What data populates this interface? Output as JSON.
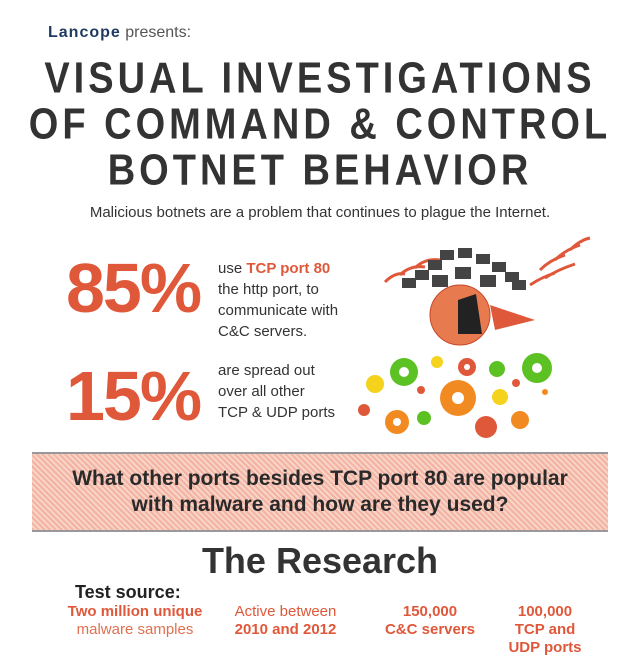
{
  "header": {
    "brand": "Lancope",
    "presents": "presents:"
  },
  "title": {
    "lines": [
      "VISUAL INVESTIGATIONS",
      "OF COMMAND & CONTROL",
      "BOTNET BEHAVIOR"
    ]
  },
  "subtitle": "Malicious botnets are a problem that continues to plague the Internet.",
  "stats": [
    {
      "value": "85%",
      "highlight": "TCP port 80",
      "lines": [
        "use",
        "the http port, to",
        "communicate with",
        "C&C servers."
      ]
    },
    {
      "value": "15%",
      "lines": [
        "are spread out",
        "over all other",
        "TCP & UDP ports"
      ]
    }
  ],
  "banner": {
    "lines": [
      "What other ports besides TCP port 80 are popular",
      "with malware and how are they used?"
    ]
  },
  "research": {
    "heading": "The Research",
    "test_source": "Test source:",
    "columns": [
      {
        "strong": "Two million unique",
        "normal": "malware samples"
      },
      {
        "normal": "Active between",
        "strong": "2010 and 2012"
      },
      {
        "strong": "150,000",
        "strong2": "C&C servers"
      },
      {
        "strong": "100,000",
        "strong2": "TCP and",
        "strong3": "UDP ports"
      }
    ]
  },
  "colors": {
    "accent": "#e0583a",
    "text": "#333333",
    "green": "#5cc122",
    "yellow": "#f5d21c",
    "orange": "#f28a22"
  }
}
